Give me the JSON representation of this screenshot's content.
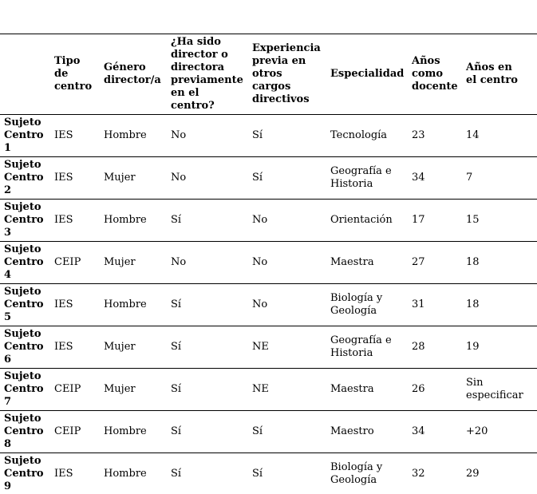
{
  "colors": {
    "text": "#000000",
    "background": "#ffffff",
    "rule": "#000000"
  },
  "table": {
    "headers": [
      "",
      "Tipo\nde\ncentro",
      "Género\ndirector/a",
      "¿Ha sido\ndirector o\ndirectora\npreviamente\nen el\ncentro?",
      "Experiencia\nprevia en\notros\ncargos\ndirectivos",
      "Especialidad",
      "Años\ncomo\ndocente",
      "Años en\nel centro"
    ],
    "rows": [
      [
        "Sujeto\nCentro\n1",
        "IES",
        "Hombre",
        "No",
        "Sí",
        "Tecnología",
        "23",
        "14"
      ],
      [
        "Sujeto\nCentro\n2",
        "IES",
        "Mujer",
        "No",
        "Sí",
        "Geografía e\nHistoria",
        "34",
        "7"
      ],
      [
        "Sujeto\nCentro\n3",
        "IES",
        "Hombre",
        "Sí",
        "No",
        "Orientación",
        "17",
        "15"
      ],
      [
        "Sujeto\nCentro\n4",
        "CEIP",
        "Mujer",
        "No",
        "No",
        "Maestra",
        "27",
        "18"
      ],
      [
        "Sujeto\nCentro\n5",
        "IES",
        "Hombre",
        "Sí",
        "No",
        "Biología y\nGeología",
        "31",
        "18"
      ],
      [
        "Sujeto\nCentro\n6",
        "IES",
        "Mujer",
        "Sí",
        "NE",
        "Geografía e\nHistoria",
        "28",
        "19"
      ],
      [
        "Sujeto\nCentro\n7",
        "CEIP",
        "Mujer",
        "Sí",
        "NE",
        "Maestra",
        "26",
        "Sin\nespecificar"
      ],
      [
        "Sujeto\nCentro\n8",
        "CEIP",
        "Hombre",
        "Sí",
        "Sí",
        "Maestro",
        "34",
        "+20"
      ],
      [
        "Sujeto\nCentro\n9",
        "IES",
        "Hombre",
        "Sí",
        "Sí",
        "Biología y\nGeología",
        "32",
        "29"
      ]
    ]
  }
}
